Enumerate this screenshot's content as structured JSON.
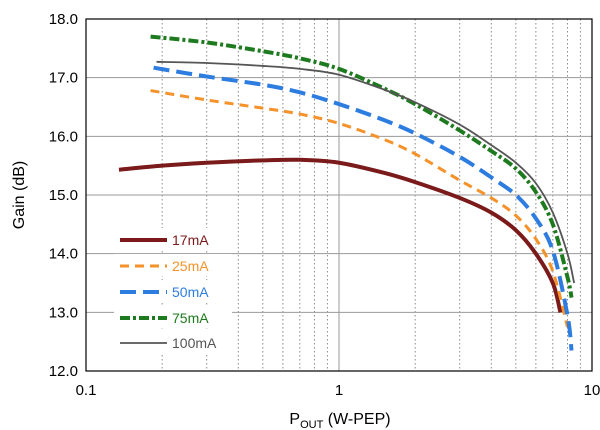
{
  "chart_data": {
    "type": "line",
    "title": "",
    "xlabel": "P",
    "xlabel_sub": "OUT",
    "xlabel_suffix": " (W-PEP)",
    "ylabel": "Gain (dB)",
    "x_scale": "log",
    "xlim": [
      0.1,
      10
    ],
    "ylim": [
      12.0,
      18.0
    ],
    "x_ticks": [
      0.1,
      1,
      10
    ],
    "x_tick_labels": [
      "0.1",
      "1",
      "10"
    ],
    "y_ticks": [
      12.0,
      13.0,
      14.0,
      15.0,
      16.0,
      17.0,
      18.0
    ],
    "y_tick_labels": [
      "12.0",
      "13.0",
      "14.0",
      "15.0",
      "16.0",
      "17.0",
      "18.0"
    ],
    "grid": true,
    "legend_position": "bottom-left",
    "series": [
      {
        "name": "17mA",
        "color": "#7b1a1a",
        "dash": "solid",
        "points": [
          [
            0.135,
            15.43
          ],
          [
            0.2,
            15.5
          ],
          [
            0.3,
            15.55
          ],
          [
            0.5,
            15.59
          ],
          [
            0.7,
            15.6
          ],
          [
            1.0,
            15.55
          ],
          [
            1.5,
            15.38
          ],
          [
            2.0,
            15.22
          ],
          [
            3.0,
            14.95
          ],
          [
            4.0,
            14.7
          ],
          [
            5.0,
            14.4
          ],
          [
            6.0,
            14.0
          ],
          [
            7.0,
            13.5
          ],
          [
            7.5,
            13.0
          ]
        ]
      },
      {
        "name": "25mA",
        "color": "#f5922a",
        "dash": "dash",
        "points": [
          [
            0.18,
            16.78
          ],
          [
            0.3,
            16.62
          ],
          [
            0.5,
            16.48
          ],
          [
            0.7,
            16.38
          ],
          [
            1.0,
            16.22
          ],
          [
            1.5,
            15.95
          ],
          [
            2.0,
            15.7
          ],
          [
            3.0,
            15.25
          ],
          [
            4.0,
            14.95
          ],
          [
            5.0,
            14.65
          ],
          [
            6.0,
            14.25
          ],
          [
            7.0,
            13.7
          ],
          [
            8.0,
            12.75
          ]
        ]
      },
      {
        "name": "50mA",
        "color": "#2d7ce0",
        "dash": "longdash",
        "points": [
          [
            0.185,
            17.17
          ],
          [
            0.3,
            17.02
          ],
          [
            0.5,
            16.88
          ],
          [
            0.7,
            16.75
          ],
          [
            1.0,
            16.55
          ],
          [
            1.5,
            16.28
          ],
          [
            2.0,
            16.05
          ],
          [
            3.0,
            15.65
          ],
          [
            4.0,
            15.3
          ],
          [
            5.0,
            15.0
          ],
          [
            6.0,
            14.6
          ],
          [
            7.0,
            14.05
          ],
          [
            8.0,
            12.95
          ],
          [
            8.3,
            12.35
          ]
        ]
      },
      {
        "name": "75mA",
        "color": "#1e7a1e",
        "dash": "dashdot",
        "points": [
          [
            0.18,
            17.7
          ],
          [
            0.3,
            17.6
          ],
          [
            0.5,
            17.45
          ],
          [
            0.7,
            17.33
          ],
          [
            1.0,
            17.15
          ],
          [
            1.5,
            16.82
          ],
          [
            2.0,
            16.55
          ],
          [
            3.0,
            16.1
          ],
          [
            4.0,
            15.75
          ],
          [
            5.0,
            15.45
          ],
          [
            6.0,
            15.05
          ],
          [
            7.0,
            14.5
          ],
          [
            8.0,
            13.6
          ],
          [
            8.3,
            13.25
          ]
        ]
      },
      {
        "name": "100mA",
        "color": "#555555",
        "dash": "solid-thin",
        "points": [
          [
            0.19,
            17.27
          ],
          [
            0.3,
            17.25
          ],
          [
            0.5,
            17.2
          ],
          [
            0.7,
            17.15
          ],
          [
            1.0,
            17.05
          ],
          [
            1.5,
            16.8
          ],
          [
            2.0,
            16.58
          ],
          [
            3.0,
            16.2
          ],
          [
            4.0,
            15.85
          ],
          [
            5.0,
            15.55
          ],
          [
            6.0,
            15.2
          ],
          [
            7.0,
            14.7
          ],
          [
            8.0,
            14.0
          ],
          [
            8.5,
            13.5
          ]
        ]
      }
    ]
  }
}
